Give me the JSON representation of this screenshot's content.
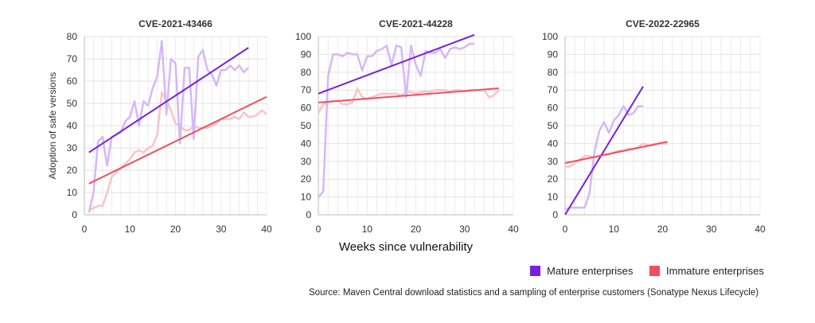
{
  "x_axis_label": "Weeks since vulnerability",
  "y_axis_label": "Adoption of safe versions",
  "legend": {
    "mature": {
      "label": "Mature enterprises",
      "color": "#7a1fe0",
      "light_color": "#d5b8f6"
    },
    "immature": {
      "label": "Immature enterprises",
      "color": "#f0505c",
      "light_color": "#f9c4c8"
    }
  },
  "source": "Source: Maven Central download statistics and a sampling of enterprise customers (Sonatype Nexus Lifecycle)",
  "chart_data": [
    {
      "type": "line",
      "title": "CVE-2021-43466",
      "xlim": [
        0,
        40
      ],
      "ylim": [
        0,
        80
      ],
      "xticks": [
        0,
        10,
        20,
        30,
        40
      ],
      "yticks": [
        0,
        10,
        20,
        30,
        40,
        50,
        60,
        70,
        80
      ],
      "series": [
        {
          "name": "Mature enterprises",
          "x": [
            1,
            2,
            3,
            4,
            5,
            6,
            7,
            8,
            9,
            10,
            11,
            12,
            13,
            14,
            15,
            16,
            17,
            18,
            19,
            20,
            21,
            22,
            23,
            24,
            25,
            26,
            27,
            28,
            29,
            30,
            31,
            32,
            33,
            34,
            35,
            36
          ],
          "values": [
            1,
            10,
            33,
            35,
            22,
            35,
            36,
            37,
            42,
            44,
            51,
            40,
            51,
            49,
            57,
            62,
            78,
            45,
            70,
            68,
            32,
            66,
            66,
            34,
            71,
            74,
            65,
            63,
            58,
            65,
            65,
            67,
            65,
            67,
            64,
            66
          ]
        },
        {
          "name": "Immature enterprises",
          "x": [
            1,
            2,
            3,
            4,
            5,
            6,
            7,
            8,
            9,
            10,
            11,
            12,
            13,
            14,
            15,
            16,
            17,
            18,
            19,
            20,
            21,
            22,
            23,
            24,
            25,
            26,
            27,
            28,
            29,
            30,
            31,
            32,
            33,
            34,
            35,
            36,
            37,
            38,
            39,
            40
          ],
          "values": [
            2,
            3,
            4,
            4,
            10,
            17,
            19,
            21,
            23,
            25,
            28,
            29,
            28,
            30,
            31,
            36,
            55,
            51,
            47,
            41,
            40,
            38,
            38,
            40,
            39,
            39,
            39,
            40,
            41,
            43,
            43,
            43,
            44,
            43,
            46,
            44,
            44,
            45,
            47,
            45
          ]
        }
      ],
      "trendlines": [
        {
          "name": "Mature enterprises",
          "from": [
            1,
            28
          ],
          "to": [
            36,
            75
          ]
        },
        {
          "name": "Immature enterprises",
          "from": [
            1,
            14
          ],
          "to": [
            40,
            53
          ]
        }
      ]
    },
    {
      "type": "line",
      "title": "CVE-2021-44228",
      "xlim": [
        0,
        40
      ],
      "ylim": [
        0,
        100
      ],
      "xticks": [
        0,
        10,
        20,
        30,
        40
      ],
      "yticks": [
        0,
        10,
        20,
        30,
        40,
        50,
        60,
        70,
        80,
        90,
        100
      ],
      "series": [
        {
          "name": "Mature enterprises",
          "x": [
            0,
            1,
            2,
            3,
            4,
            5,
            6,
            7,
            8,
            9,
            10,
            11,
            12,
            13,
            14,
            15,
            16,
            17,
            18,
            19,
            20,
            21,
            22,
            23,
            24,
            25,
            26,
            27,
            28,
            29,
            30,
            31,
            32
          ],
          "values": [
            10,
            13,
            78,
            90,
            90,
            89,
            91,
            90,
            90,
            81,
            89,
            89,
            92,
            93,
            95,
            84,
            95,
            94,
            66,
            95,
            84,
            78,
            92,
            91,
            91,
            93,
            88,
            93,
            94,
            93,
            94,
            96,
            96
          ]
        },
        {
          "name": "Immature enterprises",
          "x": [
            0,
            1,
            2,
            3,
            4,
            5,
            6,
            7,
            8,
            9,
            10,
            11,
            12,
            13,
            14,
            15,
            16,
            17,
            18,
            19,
            20,
            21,
            22,
            23,
            24,
            25,
            26,
            27,
            28,
            29,
            30,
            31,
            32,
            33,
            34,
            35,
            36,
            37
          ],
          "values": [
            57,
            62,
            63,
            64,
            64,
            62,
            62,
            63,
            71,
            66,
            65,
            66,
            67,
            68,
            68,
            68,
            68,
            67,
            69,
            69,
            68,
            69,
            69,
            69,
            70,
            70,
            70,
            69,
            70,
            70,
            69,
            70,
            70,
            70,
            70,
            66,
            67,
            70
          ]
        }
      ],
      "trendlines": [
        {
          "name": "Mature enterprises",
          "from": [
            0,
            68
          ],
          "to": [
            32,
            101
          ]
        },
        {
          "name": "Immature enterprises",
          "from": [
            0,
            63
          ],
          "to": [
            37,
            71
          ]
        }
      ]
    },
    {
      "type": "line",
      "title": "CVE-2022-22965",
      "xlim": [
        0,
        40
      ],
      "ylim": [
        0,
        100
      ],
      "xticks": [
        0,
        10,
        20,
        30,
        40
      ],
      "yticks": [
        0,
        10,
        20,
        30,
        40,
        50,
        60,
        70,
        80,
        90,
        100
      ],
      "series": [
        {
          "name": "Mature enterprises",
          "x": [
            0,
            1,
            2,
            3,
            4,
            5,
            6,
            7,
            8,
            9,
            10,
            11,
            12,
            13,
            14,
            15,
            16
          ],
          "values": [
            3,
            4,
            4,
            4,
            4,
            12,
            35,
            47,
            52,
            46,
            53,
            56,
            61,
            56,
            57,
            61,
            61
          ]
        },
        {
          "name": "Immature enterprises",
          "x": [
            0,
            1,
            2,
            3,
            4,
            5,
            6,
            7,
            8,
            9,
            10,
            11,
            12,
            13,
            14,
            15,
            16,
            17,
            18,
            19,
            20,
            21
          ],
          "values": [
            27,
            27,
            29,
            31,
            33,
            33,
            32,
            33,
            34,
            34,
            35,
            36,
            36,
            37,
            37,
            38,
            40,
            39,
            39,
            40,
            40,
            40
          ]
        }
      ],
      "trendlines": [
        {
          "name": "Mature enterprises",
          "from": [
            0,
            0
          ],
          "to": [
            16,
            72
          ]
        },
        {
          "name": "Immature enterprises",
          "from": [
            0,
            29
          ],
          "to": [
            21,
            41
          ]
        }
      ]
    }
  ]
}
